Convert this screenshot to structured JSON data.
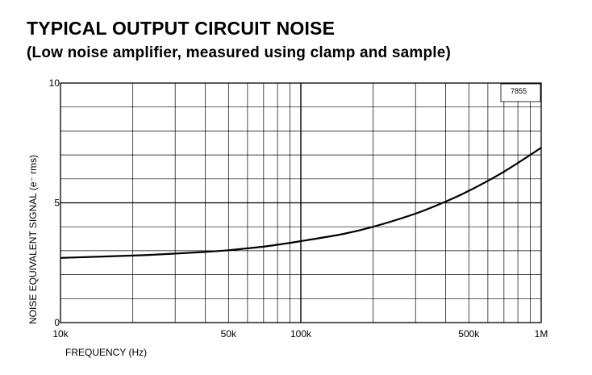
{
  "header": {
    "title": "TYPICAL OUTPUT CIRCUIT NOISE",
    "subtitle": "(Low noise amplifier, measured using clamp and sample)"
  },
  "chart_data": {
    "type": "line",
    "xscale": "log",
    "xlim": [
      10000,
      1000000
    ],
    "ylim": [
      0,
      10
    ],
    "xlabel": "FREQUENCY (Hz)",
    "ylabel": "NOISE EQUIVALENT SIGNAL (e⁻ rms)",
    "x_ticks": [
      {
        "value": 10000,
        "label": "10k"
      },
      {
        "value": 50000,
        "label": "50k"
      },
      {
        "value": 100000,
        "label": "100k"
      },
      {
        "value": 500000,
        "label": "500k"
      },
      {
        "value": 1000000,
        "label": "1M"
      }
    ],
    "y_ticks": [
      {
        "value": 0,
        "label": "0"
      },
      {
        "value": 5,
        "label": "5"
      },
      {
        "value": 10,
        "label": "10"
      }
    ],
    "y_minor_step": 1,
    "grid": true,
    "annotation": "7855",
    "series": [
      {
        "x": [
          10000,
          20000,
          30000,
          40000,
          50000,
          60000,
          70000,
          80000,
          100000,
          150000,
          200000,
          300000,
          400000,
          500000,
          700000,
          1000000
        ],
        "y": [
          2.7,
          2.8,
          2.88,
          2.95,
          3.02,
          3.1,
          3.17,
          3.25,
          3.4,
          3.7,
          4.0,
          4.55,
          5.05,
          5.5,
          6.3,
          7.3
        ]
      }
    ]
  }
}
